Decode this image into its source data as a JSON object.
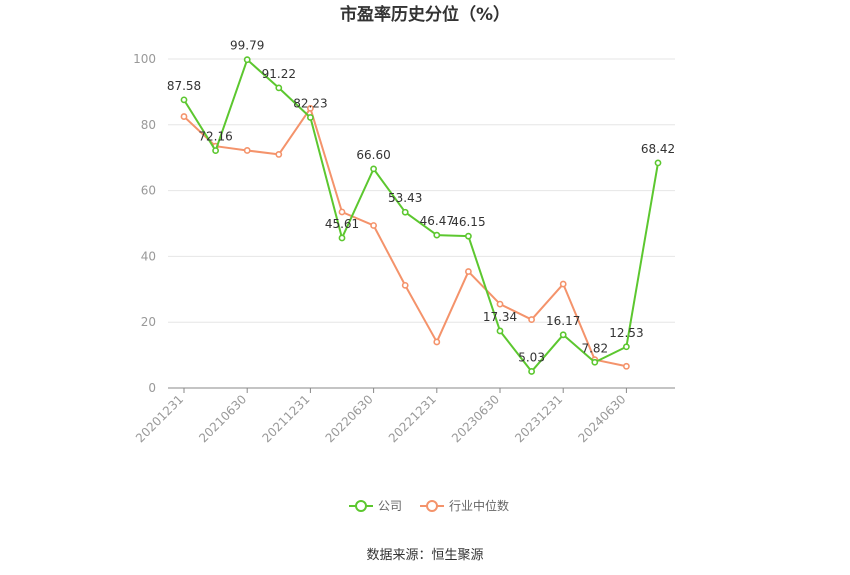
{
  "chart_data": {
    "type": "line",
    "title": "市盈率历史分位（%）",
    "source": "数据来源：恒生聚源",
    "ylim": [
      0,
      100
    ],
    "yticks": [
      0,
      20,
      40,
      60,
      80,
      100
    ],
    "grid": true,
    "legend_position": "bottom",
    "x": [
      "20201231",
      "20210331",
      "20210630",
      "20210930",
      "20211231",
      "20220331",
      "20220630",
      "20220930",
      "20221231",
      "20230331",
      "20230630",
      "20230930",
      "20231231",
      "20240331",
      "20240630",
      "20240930"
    ],
    "xtick_labels": [
      "20201231",
      "20210630",
      "20211231",
      "20220630",
      "20221231",
      "20230630",
      "20231231",
      "20240630"
    ],
    "series": [
      {
        "name": "公司",
        "color": "#5cc72f",
        "values": [
          87.58,
          72.16,
          99.79,
          91.22,
          82.23,
          45.61,
          66.6,
          53.43,
          46.47,
          46.15,
          17.34,
          5.03,
          16.17,
          7.82,
          12.53,
          68.42
        ],
        "labels": [
          "87.58",
          "72.16",
          "99.79",
          "91.22",
          "82.23",
          "45.61",
          "66.60",
          "53.43",
          "46.47",
          "46.15",
          "17.34",
          "5.03",
          "16.17",
          "7.82",
          "12.53",
          "68.42"
        ]
      },
      {
        "name": "行业中位数",
        "color": "#f4936b",
        "values": [
          82.5,
          73.5,
          72.2,
          71.0,
          85.0,
          53.5,
          49.4,
          31.2,
          14.0,
          35.4,
          25.5,
          20.8,
          31.6,
          8.6,
          6.6,
          null
        ],
        "labels": []
      }
    ]
  }
}
